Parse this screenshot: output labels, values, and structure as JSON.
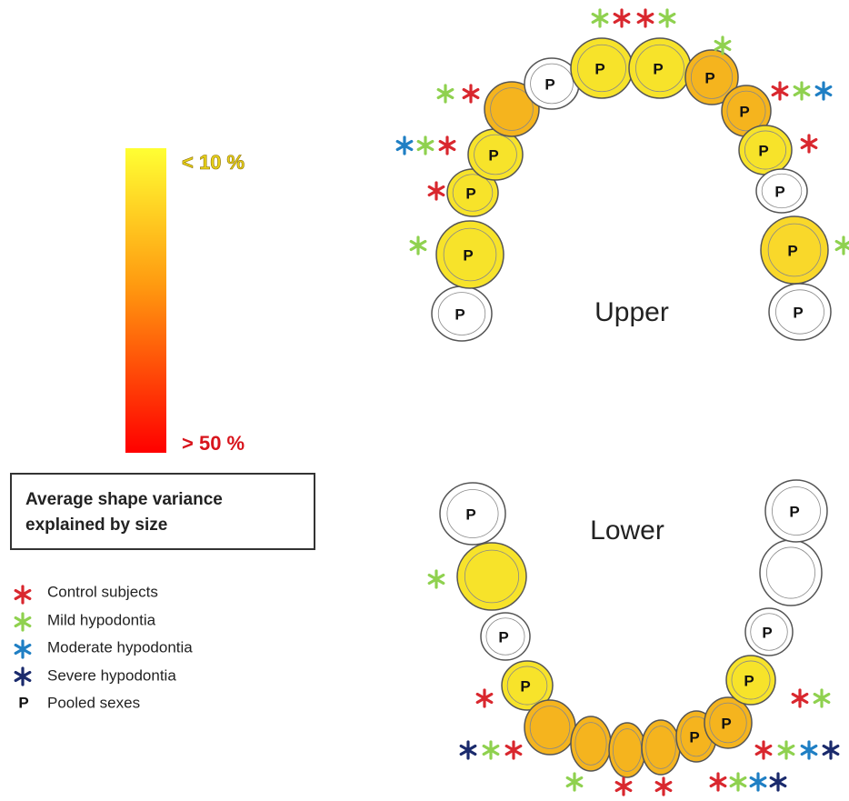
{
  "colorbar": {
    "top_label": "< 10 %",
    "bottom_label": "> 50 %"
  },
  "caption": {
    "lines": [
      "Average shape variance",
      "explained by size"
    ]
  },
  "legend": {
    "items": [
      {
        "label": "Control subjects"
      },
      {
        "label": "Mild hypodontia"
      },
      {
        "label": "Moderate hypodontia"
      },
      {
        "label": "Severe hypodontia"
      },
      {
        "symbol": "P",
        "label": "Pooled sexes"
      }
    ]
  },
  "upper": {
    "label": "Upper",
    "tooth_labels": [
      "P",
      "P",
      "P",
      "P",
      "P",
      "P",
      "P",
      "P",
      "P",
      "P",
      "P",
      "P",
      "P"
    ]
  },
  "lower": {
    "label": "Lower",
    "tooth_labels": [
      "P",
      "P",
      "P",
      "P",
      "P",
      "P",
      "P",
      "P"
    ]
  }
}
